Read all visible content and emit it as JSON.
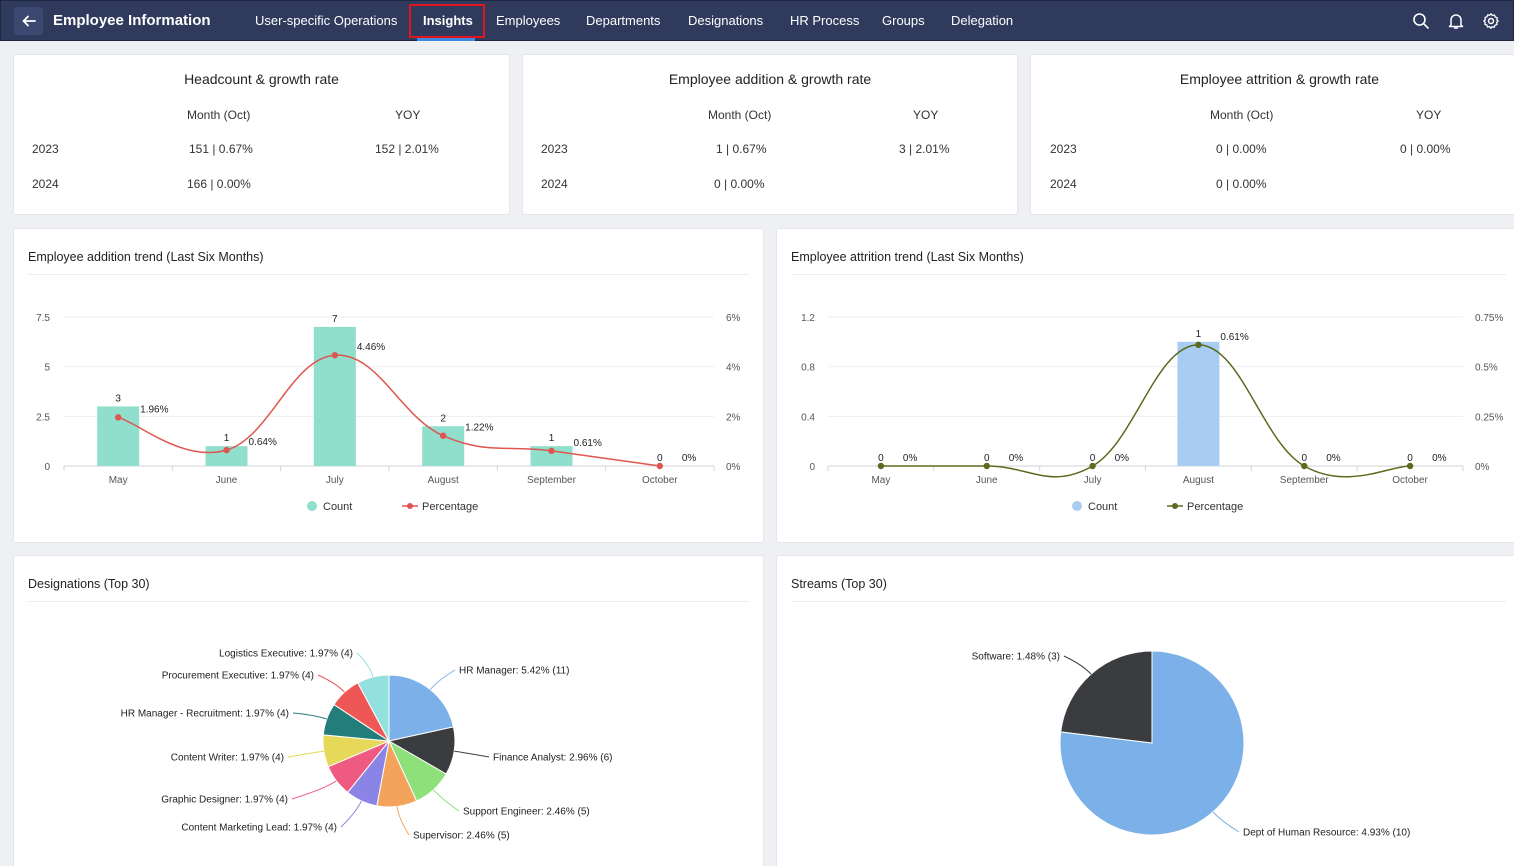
{
  "header": {
    "title": "Employee Information",
    "nav": [
      "User-specific Operations",
      "Insights",
      "Employees",
      "Departments",
      "Designations",
      "HR Process",
      "Groups",
      "Delegation"
    ],
    "active": "Insights"
  },
  "kpis": [
    {
      "title": "Headcount & growth rate",
      "col_month": "Month (Oct)",
      "col_yoy": "YOY",
      "rows": [
        {
          "year": "2023",
          "month": "151 | 0.67%",
          "yoy": "152 | 2.01%"
        },
        {
          "year": "2024",
          "month": "166 | 0.00%",
          "yoy": ""
        }
      ]
    },
    {
      "title": "Employee addition & growth rate",
      "col_month": "Month (Oct)",
      "col_yoy": "YOY",
      "rows": [
        {
          "year": "2023",
          "month": "1 | 0.67%",
          "yoy": "3 | 2.01%"
        },
        {
          "year": "2024",
          "month": "0 | 0.00%",
          "yoy": ""
        }
      ]
    },
    {
      "title": "Employee attrition & growth rate",
      "col_month": "Month (Oct)",
      "col_yoy": "YOY",
      "rows": [
        {
          "year": "2023",
          "month": "0 | 0.00%",
          "yoy": "0 | 0.00%"
        },
        {
          "year": "2024",
          "month": "0 | 0.00%",
          "yoy": ""
        }
      ]
    }
  ],
  "chart_data": [
    {
      "type": "bar",
      "title": "Employee addition trend (Last Six Months)",
      "categories": [
        "May",
        "June",
        "July",
        "August",
        "September",
        "October"
      ],
      "series": [
        {
          "name": "Count",
          "values": [
            3,
            1,
            7,
            2,
            1,
            0
          ],
          "color": "#8fdfcc"
        },
        {
          "name": "Percentage",
          "values": [
            1.96,
            0.64,
            4.46,
            1.22,
            0.61,
            0
          ],
          "color": "#e0554f"
        }
      ],
      "value_labels": [
        "3",
        "1",
        "7",
        "2",
        "1",
        "0"
      ],
      "pct_labels": [
        "1.96%",
        "0.64%",
        "4.46%",
        "1.22%",
        "0.61%",
        "0%"
      ],
      "y_ticks": [
        "0",
        "2.5",
        "5",
        "7.5"
      ],
      "y2_ticks": [
        "0%",
        "2%",
        "4%",
        "6%"
      ],
      "ylim": [
        0,
        7.5
      ],
      "y2lim": [
        0,
        6
      ],
      "legend": [
        "Count",
        "Percentage"
      ]
    },
    {
      "type": "bar",
      "title": "Employee attrition trend (Last Six Months)",
      "categories": [
        "May",
        "June",
        "July",
        "August",
        "September",
        "October"
      ],
      "series": [
        {
          "name": "Count",
          "values": [
            0,
            0,
            0,
            1,
            0,
            0
          ],
          "color": "#a9ccf2"
        },
        {
          "name": "Percentage",
          "values": [
            0,
            0,
            0,
            0.61,
            0,
            0
          ],
          "color": "#5a6b1f"
        }
      ],
      "value_labels": [
        "0",
        "0",
        "0",
        "1",
        "0",
        "0"
      ],
      "pct_labels": [
        "0%",
        "0%",
        "0%",
        "0.61%",
        "0%",
        "0%"
      ],
      "y_ticks": [
        "0",
        "0.4",
        "0.8",
        "1.2"
      ],
      "y2_ticks": [
        "0%",
        "0.25%",
        "0.5%",
        "0.75%"
      ],
      "ylim": [
        0,
        1.2
      ],
      "y2lim": [
        0,
        0.75
      ],
      "legend": [
        "Count",
        "Percentage"
      ]
    },
    {
      "type": "pie",
      "title": "Designations (Top 30)",
      "slices": [
        {
          "label": "HR Manager: 5.42% (11)",
          "value": 11,
          "color": "#7bb1e8"
        },
        {
          "label": "Finance Analyst: 2.96% (6)",
          "value": 6,
          "color": "#3b3c40"
        },
        {
          "label": "Support Engineer: 2.46% (5)",
          "value": 5,
          "color": "#8ee07a"
        },
        {
          "label": "Supervisor: 2.46% (5)",
          "value": 5,
          "color": "#f4a35c"
        },
        {
          "label": "Content Marketing Lead: 1.97% (4)",
          "value": 4,
          "color": "#8a84e6"
        },
        {
          "label": "Graphic Designer: 1.97% (4)",
          "value": 4,
          "color": "#ef5b80"
        },
        {
          "label": "Content Writer: 1.97% (4)",
          "value": 4,
          "color": "#e6d95a"
        },
        {
          "label": "HR Manager - Recruitment: 1.97% (4)",
          "value": 4,
          "color": "#237d7a"
        },
        {
          "label": "Procurement Executive: 1.97% (4)",
          "value": 4,
          "color": "#ef5757"
        },
        {
          "label": "Logistics Executive: 1.97% (4)",
          "value": 4,
          "color": "#93e1df"
        }
      ]
    },
    {
      "type": "pie",
      "title": "Streams (Top 30)",
      "slices": [
        {
          "label": "Dept of Human Resource: 4.93% (10)",
          "value": 10,
          "color": "#7bb1e8"
        },
        {
          "label": "Software: 1.48% (3)",
          "value": 3,
          "color": "#3b3c40"
        }
      ]
    }
  ]
}
